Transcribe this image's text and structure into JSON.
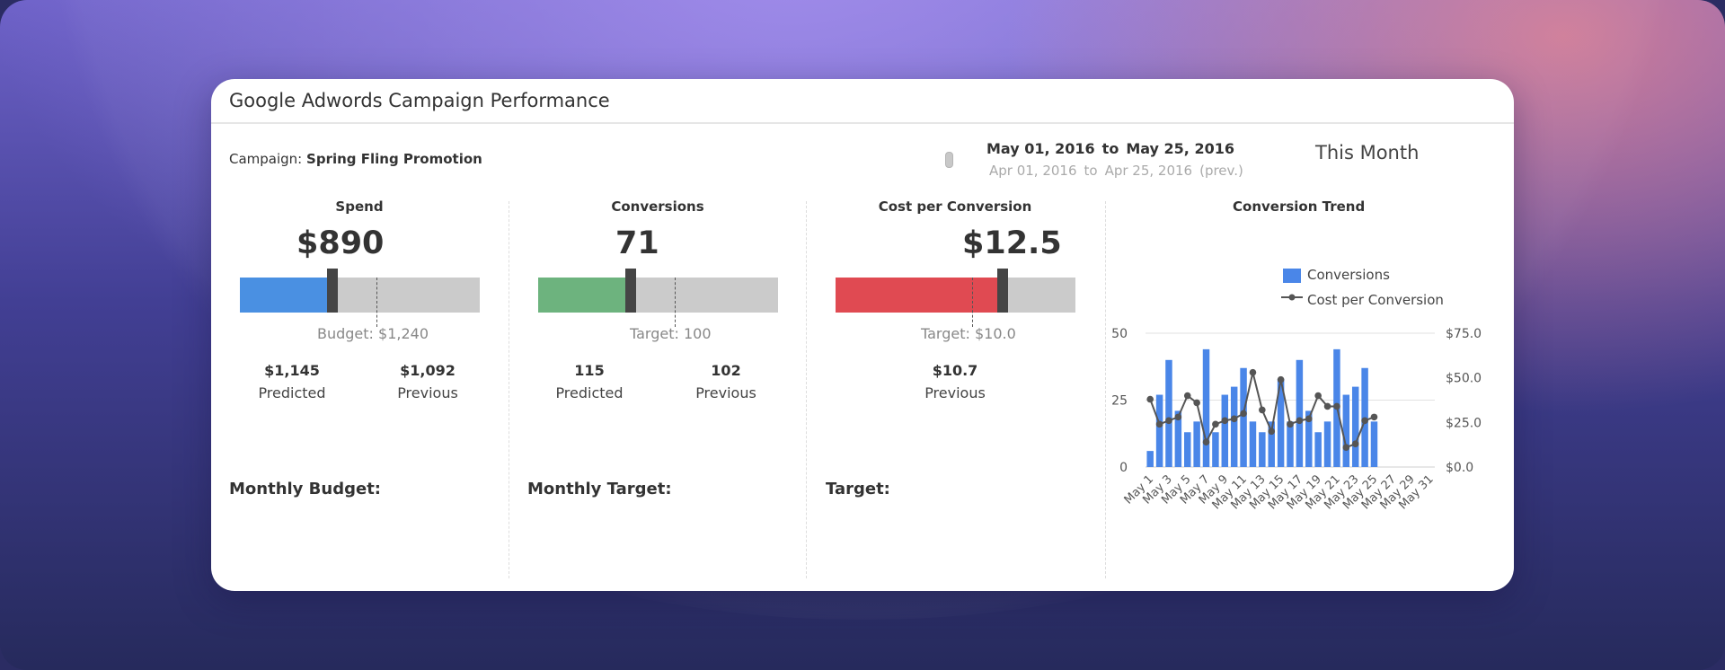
{
  "header": {
    "title": "Google Adwords Campaign Performance"
  },
  "campaign": {
    "label": "Campaign:",
    "name": "Spring Fling Promotion"
  },
  "date_range": {
    "current_from": "May 01, 2016",
    "to_word": "to",
    "current_to": "May 25, 2016",
    "previous_from": "Apr 01, 2016",
    "previous_to": "Apr 25, 2016",
    "previous_suffix": "(prev.)",
    "period": "This Month"
  },
  "kpis": [
    {
      "title": "Spend",
      "value": "$890",
      "fill_fraction": 0.39,
      "marker_fraction": 0.41,
      "target_fraction": 0.57,
      "bar_color": "#4a90e2",
      "caption": "Budget: $1,240",
      "stats": [
        {
          "num": "$1,145",
          "lbl": "Predicted"
        },
        {
          "num": "$1,092",
          "lbl": "Previous"
        }
      ],
      "section": "Monthly Budget:"
    },
    {
      "title": "Conversions",
      "value": "71",
      "fill_fraction": 0.39,
      "marker_fraction": 0.41,
      "target_fraction": 0.57,
      "bar_color": "#6db37e",
      "caption": "Target: 100",
      "stats": [
        {
          "num": "115",
          "lbl": "Predicted"
        },
        {
          "num": "102",
          "lbl": "Previous"
        }
      ],
      "section": "Monthly Target:"
    },
    {
      "title": "Cost per Conversion",
      "value": "$12.5",
      "fill_fraction": 0.7,
      "marker_fraction": 0.72,
      "target_fraction": 0.57,
      "bar_color": "#e04a52",
      "caption": "Target: $10.0",
      "stats": [
        {
          "num": "$10.7",
          "lbl": "Previous"
        }
      ],
      "section": "Target:"
    }
  ],
  "chart_data": {
    "type": "bar",
    "title": "Conversion Trend",
    "categories": [
      "May 1",
      "May 2",
      "May 3",
      "May 4",
      "May 5",
      "May 6",
      "May 7",
      "May 8",
      "May 9",
      "May 10",
      "May 11",
      "May 12",
      "May 13",
      "May 14",
      "May 15",
      "May 16",
      "May 17",
      "May 18",
      "May 19",
      "May 20",
      "May 21",
      "May 22",
      "May 23",
      "May 24",
      "May 25",
      "May 26",
      "May 27",
      "May 28",
      "May 29",
      "May 30",
      "May 31"
    ],
    "tick_labels": [
      "May 1",
      "May 3",
      "May 5",
      "May 7",
      "May 9",
      "May 11",
      "May 13",
      "May 15",
      "May 17",
      "May 19",
      "May 21",
      "May 23",
      "May 25",
      "May 27",
      "May 29",
      "May 31"
    ],
    "series": [
      {
        "name": "Conversions",
        "type": "bar",
        "axis": "left",
        "color": "#4a86e8",
        "values": [
          6,
          27,
          40,
          21,
          13,
          17,
          44,
          13,
          27,
          30,
          37,
          17,
          13,
          17,
          33,
          17,
          40,
          21,
          13,
          17,
          44,
          27,
          30,
          37,
          17,
          null,
          null,
          null,
          null,
          null,
          null
        ]
      },
      {
        "name": "Cost per Conversion",
        "type": "line",
        "axis": "right",
        "color": "#555555",
        "values": [
          38,
          24,
          26,
          28,
          40,
          36,
          14,
          24,
          26,
          27,
          30,
          53,
          32,
          20,
          49,
          24,
          26,
          27,
          40,
          34,
          34,
          11,
          13,
          26,
          28,
          null,
          null,
          null,
          null,
          null,
          null
        ]
      }
    ],
    "y_left": {
      "ticks": [
        "0",
        "25",
        "50"
      ],
      "range": [
        0,
        50
      ]
    },
    "y_right": {
      "ticks": [
        "$0.0",
        "$25.0",
        "$50.0",
        "$75.0"
      ],
      "range": [
        0,
        75
      ]
    },
    "legend": {
      "position": "top-right"
    }
  }
}
